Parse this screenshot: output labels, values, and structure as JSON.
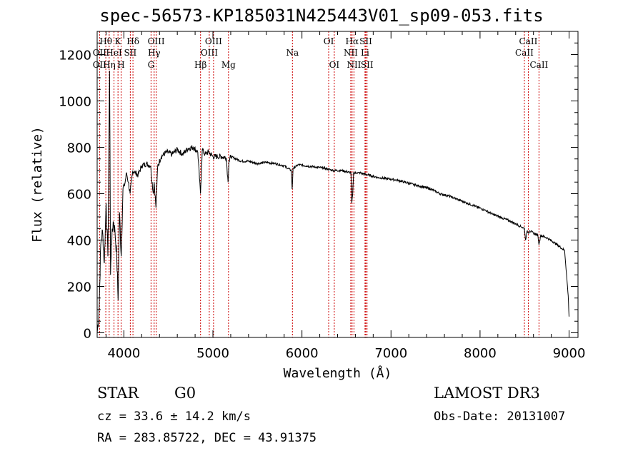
{
  "page": {
    "title": "spec-56573-KP185031N425443V01_sp09-053.fits",
    "object_class": "STAR",
    "subclass": "G0",
    "survey": "LAMOST DR3",
    "cz_text": "cz = 33.6 ± 14.2 km/s",
    "obs_date": "Obs-Date: 20131007",
    "coords": "RA = 283.85722, DEC =  43.91375"
  },
  "chart_data": {
    "type": "line",
    "title": "spec-56573-KP185031N425443V01_sp09-053.fits",
    "xlabel": "Wavelength (Å)",
    "ylabel": "Flux (relative)",
    "xlim": [
      3700,
      9100
    ],
    "ylim": [
      -20,
      1300
    ],
    "xticks": [
      4000,
      5000,
      6000,
      7000,
      8000,
      9000
    ],
    "yticks": [
      0,
      200,
      400,
      600,
      800,
      1000,
      1200
    ],
    "series": [
      {
        "name": "flux",
        "x": [
          3700,
          3720,
          3740,
          3760,
          3780,
          3800,
          3820,
          3840,
          3850,
          3860,
          3880,
          3900,
          3920,
          3935,
          3950,
          3970,
          3990,
          4010,
          4030,
          4050,
          4070,
          4100,
          4130,
          4160,
          4200,
          4250,
          4300,
          4330,
          4340,
          4360,
          4380,
          4420,
          4480,
          4540,
          4600,
          4660,
          4720,
          4780,
          4830,
          4860,
          4880,
          4910,
          4950,
          5000,
          5050,
          5100,
          5150,
          5170,
          5180,
          5200,
          5260,
          5320,
          5400,
          5500,
          5600,
          5700,
          5800,
          5880,
          5890,
          5900,
          5960,
          6050,
          6150,
          6250,
          6350,
          6450,
          6550,
          6560,
          6570,
          6580,
          6650,
          6750,
          6850,
          6950,
          7050,
          7150,
          7250,
          7350,
          7450,
          7550,
          7650,
          7750,
          7850,
          7950,
          8050,
          8150,
          8250,
          8350,
          8450,
          8498,
          8510,
          8530,
          8542,
          8560,
          8600,
          8650,
          8662,
          8680,
          8750,
          8850,
          8950,
          8990,
          9000
        ],
        "y": [
          0,
          80,
          380,
          440,
          300,
          560,
          330,
          1130,
          250,
          380,
          480,
          440,
          330,
          140,
          520,
          330,
          620,
          640,
          690,
          650,
          600,
          700,
          690,
          680,
          720,
          730,
          720,
          600,
          650,
          540,
          720,
          760,
          780,
          770,
          790,
          770,
          795,
          800,
          780,
          600,
          790,
          770,
          780,
          760,
          760,
          760,
          755,
          650,
          740,
          760,
          750,
          740,
          740,
          730,
          735,
          730,
          720,
          700,
          620,
          710,
          725,
          720,
          715,
          710,
          700,
          700,
          690,
          560,
          600,
          690,
          690,
          680,
          670,
          665,
          660,
          650,
          640,
          630,
          620,
          600,
          590,
          575,
          560,
          545,
          530,
          510,
          495,
          480,
          460,
          450,
          400,
          440,
          430,
          440,
          430,
          420,
          380,
          420,
          410,
          385,
          355,
          160,
          70
        ]
      }
    ],
    "spectral_lines": [
      {
        "label": "Hθ",
        "wavelength": 3797,
        "row": 1
      },
      {
        "label": "OII",
        "wavelength": 3727,
        "row": 2
      },
      {
        "label": "OII",
        "wavelength": 3727,
        "row": 3
      },
      {
        "label": "Hη",
        "wavelength": 3835,
        "row": 3
      },
      {
        "label": "K",
        "wavelength": 3934,
        "row": 1
      },
      {
        "label": "HeI",
        "wavelength": 3889,
        "row": 2
      },
      {
        "label": "H",
        "wavelength": 3969,
        "row": 3
      },
      {
        "label": "Hδ",
        "wavelength": 4102,
        "row": 1
      },
      {
        "label": "SII",
        "wavelength": 4072,
        "row": 2
      },
      {
        "label": "OIII",
        "wavelength": 4363,
        "row": 1
      },
      {
        "label": "Hγ",
        "wavelength": 4340,
        "row": 2
      },
      {
        "label": "G",
        "wavelength": 4305,
        "row": 3
      },
      {
        "label": "OIII",
        "wavelength": 5007,
        "row": 1
      },
      {
        "label": "OIII",
        "wavelength": 4959,
        "row": 2
      },
      {
        "label": "Hβ",
        "wavelength": 4861,
        "row": 3
      },
      {
        "label": "Mg",
        "wavelength": 5175,
        "row": 3
      },
      {
        "label": "Na",
        "wavelength": 5893,
        "row": 2
      },
      {
        "label": "OI",
        "wavelength": 6300,
        "row": 1
      },
      {
        "label": "OI",
        "wavelength": 6363,
        "row": 3
      },
      {
        "label": "Hα",
        "wavelength": 6563,
        "row": 1
      },
      {
        "label": "SII",
        "wavelength": 6717,
        "row": 1
      },
      {
        "label": "NII",
        "wavelength": 6548,
        "row": 2
      },
      {
        "label": "Li",
        "wavelength": 6708,
        "row": 2
      },
      {
        "label": "NII",
        "wavelength": 6584,
        "row": 3
      },
      {
        "label": "SII",
        "wavelength": 6731,
        "row": 3
      },
      {
        "label": "CaII",
        "wavelength": 8542,
        "row": 1
      },
      {
        "label": "CaII",
        "wavelength": 8498,
        "row": 2
      },
      {
        "label": "CaII",
        "wavelength": 8662,
        "row": 3
      }
    ],
    "line_color": "#cc0000",
    "grid": false
  }
}
